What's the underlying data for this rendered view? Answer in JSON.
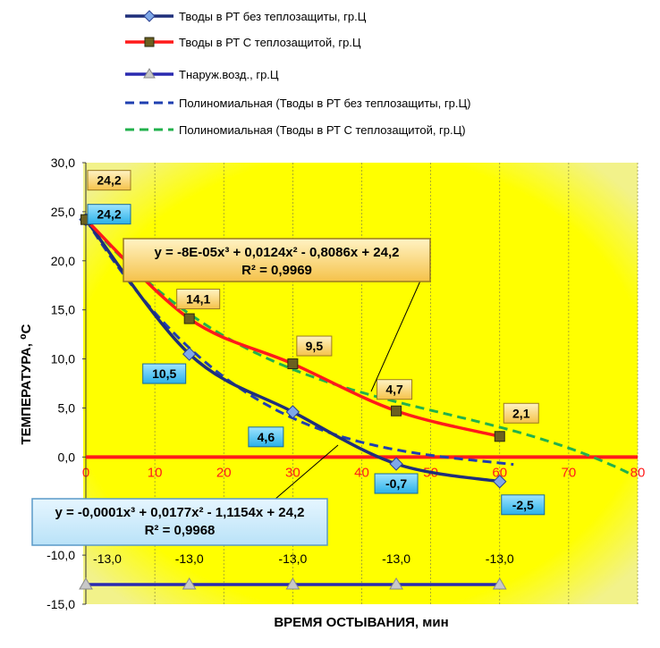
{
  "chart_data": {
    "type": "line",
    "xlabel": "ВРЕМЯ ОСТЫВАНИЯ, мин",
    "ylabel": "ТЕМПЕРАТУРА, ⁰С",
    "xlim": [
      0,
      80
    ],
    "ylim": [
      -15,
      30
    ],
    "x_ticks": [
      "0",
      "10",
      "20",
      "30",
      "40",
      "50",
      "60",
      "70",
      "80"
    ],
    "y_ticks": [
      "30,0",
      "25,0",
      "20,0",
      "15,0",
      "10,0",
      "5,0",
      "0,0",
      "-5,0",
      "-10,0",
      "-15,0"
    ],
    "grid": "vertical",
    "legend_position": "top",
    "series": [
      {
        "name": "Тводы в РТ без теплозащиты, гр.Ц",
        "color": "#1f2f7a",
        "marker": "diamond",
        "x": [
          0,
          15,
          30,
          45,
          60
        ],
        "y": [
          24.2,
          10.5,
          4.6,
          -0.7,
          -2.5
        ],
        "labels": [
          "24,2",
          "10,5",
          "4,6",
          "-0,7",
          "-2,5"
        ]
      },
      {
        "name": "Тводы в РТ С теплозащитой, гр.Ц",
        "color": "#ff1a1a",
        "marker": "square",
        "x": [
          0,
          15,
          30,
          45,
          60
        ],
        "y": [
          24.2,
          14.1,
          9.5,
          4.7,
          2.1
        ],
        "labels": [
          "24,2",
          "14,1",
          "9,5",
          "4,7",
          "2,1"
        ]
      },
      {
        "name": "Тнаруж.возд., гр.Ц",
        "color": "#2a2ab0",
        "marker": "triangle",
        "x": [
          0,
          15,
          30,
          45,
          60
        ],
        "y": [
          -13,
          -13,
          -13,
          -13,
          -13
        ],
        "labels": [
          "-13,0",
          "-13,0",
          "-13,0",
          "-13,0",
          "-13,0"
        ]
      },
      {
        "name": "Полиномиальная (Тводы в РТ без теплозащиты, гр.Ц)",
        "color": "#1f3fb0",
        "style": "dashed",
        "poly": [
          -0.0001,
          0.0177,
          -1.1154,
          24.2
        ],
        "x_range": [
          0,
          62
        ]
      },
      {
        "name": "Полиномиальная (Тводы в РТ С теплозащитой, гр.Ц)",
        "color": "#22b14c",
        "style": "dashed",
        "poly": [
          -8e-05,
          0.0124,
          -0.8086,
          24.2
        ],
        "x_range": [
          0,
          79
        ]
      }
    ],
    "trendline_labels": [
      {
        "equation": "y = -8E-05x³ + 0,0124x² - 0,8086x + 24,2",
        "r2": "R² = 0,9969"
      },
      {
        "equation": "y = -0,0001x³ + 0,0177x² - 1,1154x + 24,2",
        "r2": "R² = 0,9968"
      }
    ],
    "plot_background": "#ffff00"
  }
}
